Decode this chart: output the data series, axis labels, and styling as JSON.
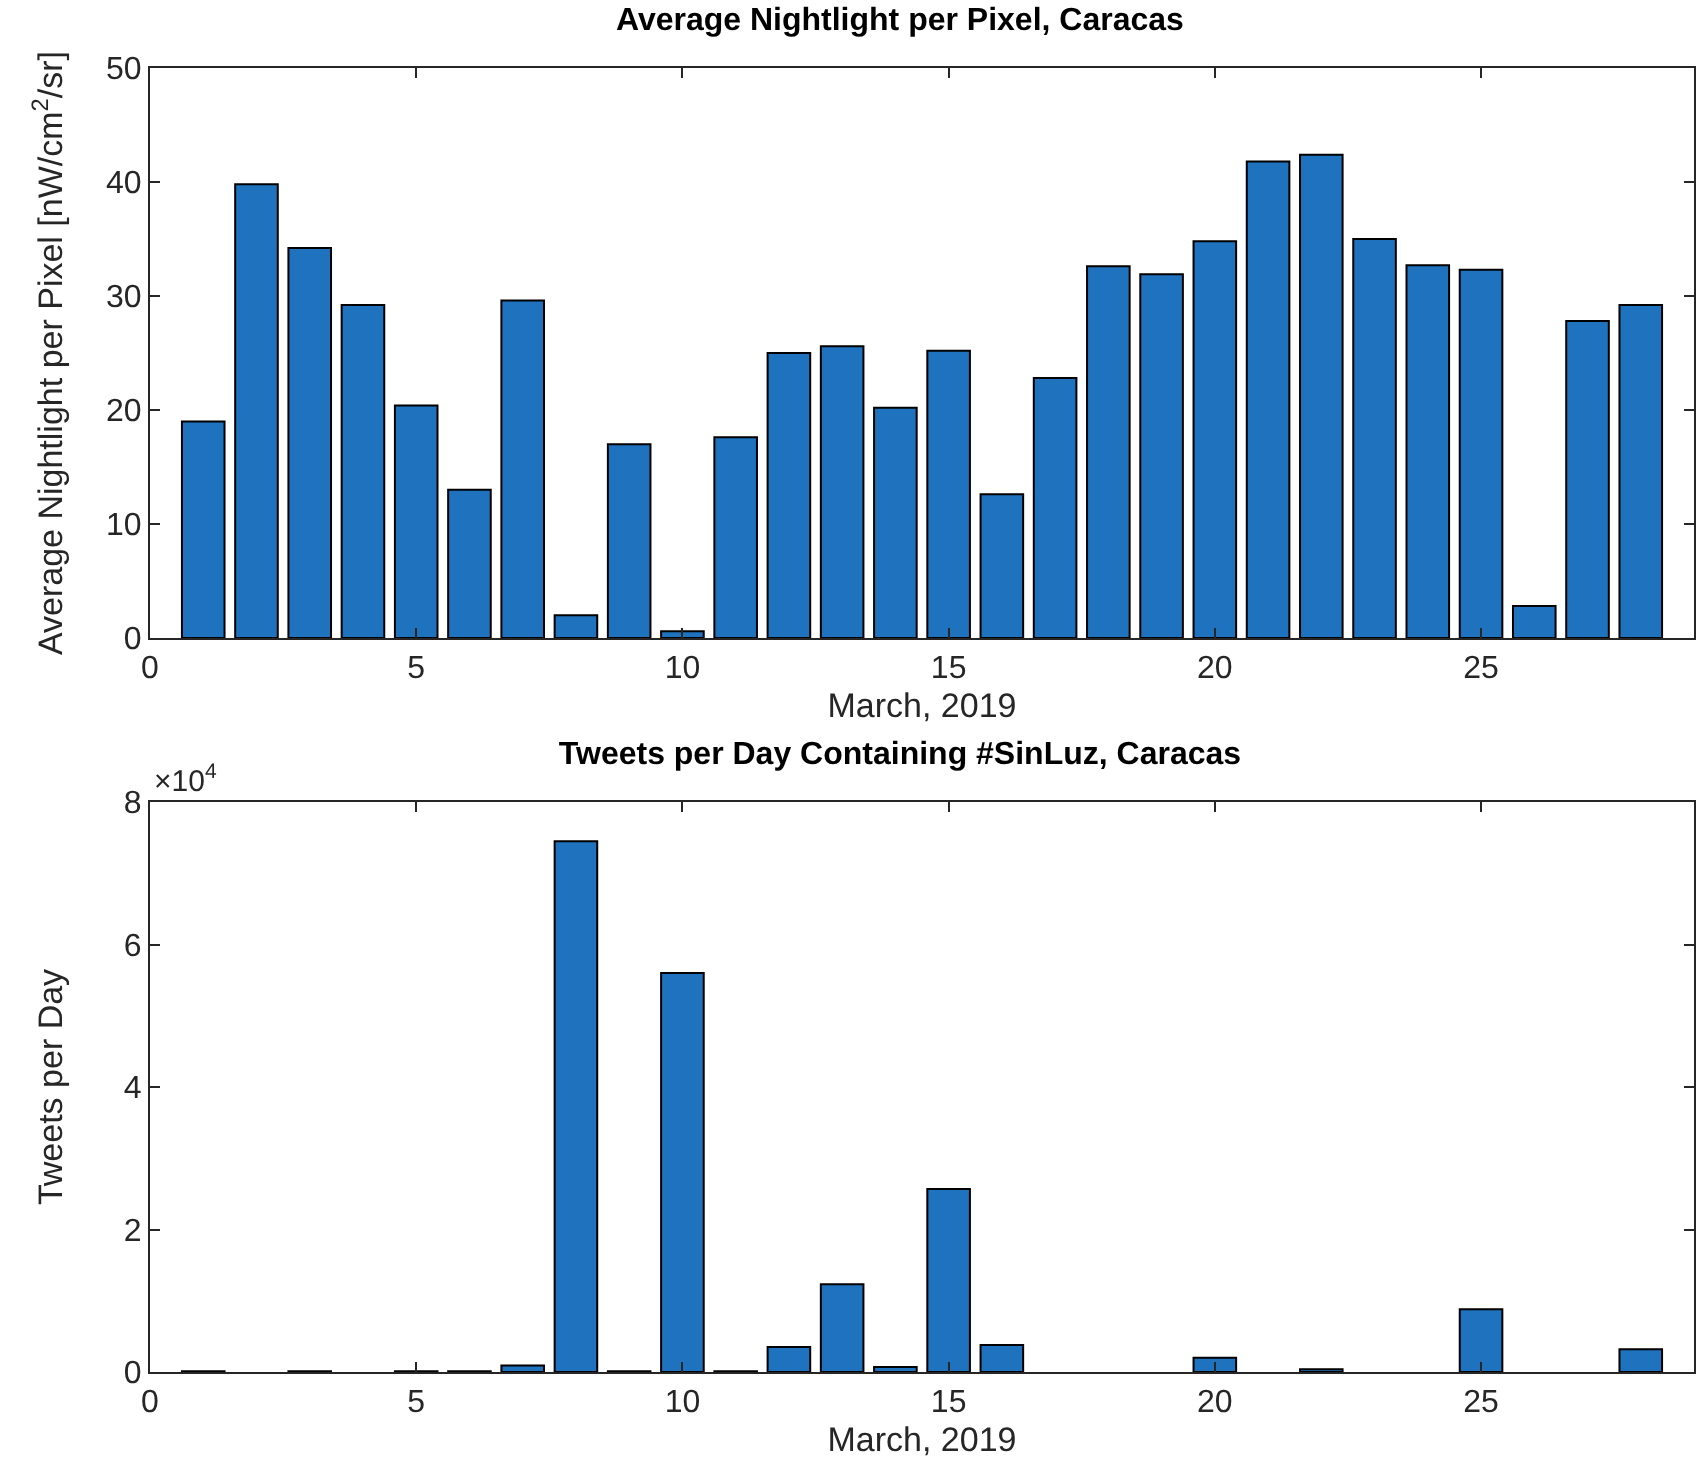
{
  "chart_data": [
    {
      "type": "bar",
      "title": "Average Nightlight per Pixel, Caracas",
      "xlabel": "March, 2019",
      "ylabel": "Average Nightlight per Pixel [nW/cm$^{2}$/sr]",
      "x": [
        1,
        2,
        3,
        4,
        5,
        6,
        7,
        8,
        9,
        10,
        11,
        12,
        13,
        14,
        15,
        16,
        17,
        18,
        19,
        20,
        21,
        22,
        23,
        24,
        25,
        26,
        27,
        28
      ],
      "values": [
        19,
        39.8,
        34.2,
        29.2,
        20.4,
        13,
        29.6,
        2,
        17,
        0.6,
        17.6,
        25,
        25.6,
        20.2,
        25.2,
        12.6,
        22.8,
        32.6,
        31.9,
        34.8,
        41.8,
        42.4,
        35,
        32.7,
        32.3,
        2.8,
        27.8,
        29.2
      ],
      "color": "#1f72bd",
      "xlim": [
        0,
        29
      ],
      "xticks": [
        0,
        5,
        10,
        15,
        20,
        25
      ],
      "ylim": [
        0,
        50
      ],
      "yticks": [
        0,
        10,
        20,
        30,
        40,
        50
      ],
      "grid": false
    },
    {
      "type": "bar",
      "title": "Tweets per Day Containing #SinLuz, Caracas",
      "xlabel": "March, 2019",
      "ylabel": "Tweets per Day",
      "annotations": [
        "×10$^{4}$"
      ],
      "x": [
        1,
        2,
        3,
        4,
        5,
        6,
        7,
        8,
        9,
        10,
        11,
        12,
        13,
        14,
        15,
        16,
        17,
        18,
        19,
        20,
        21,
        22,
        23,
        24,
        25,
        26,
        27,
        28
      ],
      "values": [
        0.01,
        null,
        0.01,
        null,
        0.01,
        0.01,
        0.09,
        7.45,
        0.01,
        5.6,
        0.01,
        0.35,
        1.23,
        0.07,
        2.57,
        0.38,
        null,
        null,
        null,
        0.2,
        null,
        0.04,
        null,
        null,
        0.88,
        null,
        null,
        0.32
      ],
      "color": "#1f72bd",
      "xlim": [
        0,
        29
      ],
      "xticks": [
        0,
        5,
        10,
        15,
        20,
        25
      ],
      "ylim": [
        0,
        8
      ],
      "yticks": [
        0,
        2,
        4,
        6,
        8
      ],
      "grid": false
    }
  ]
}
